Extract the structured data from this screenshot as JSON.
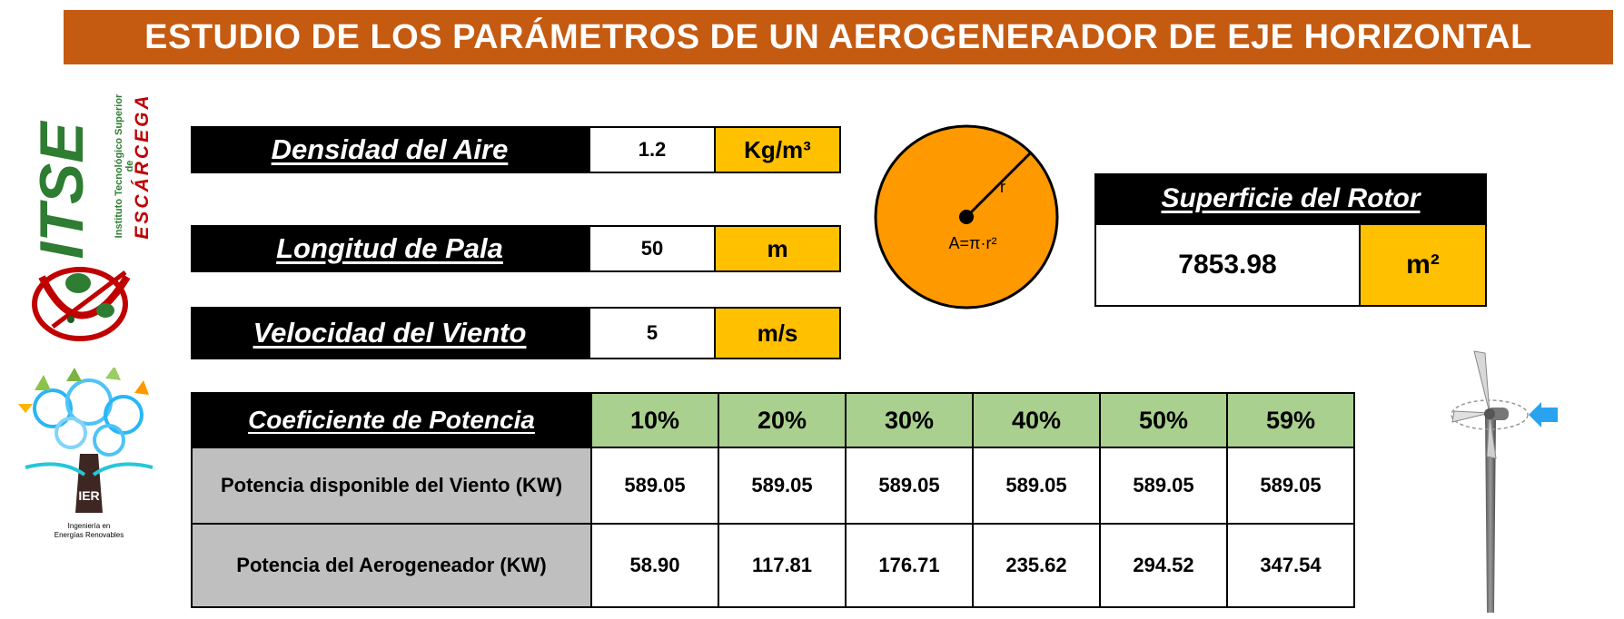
{
  "title": "ESTUDIO DE LOS PARÁMETROS DE UN AEROGENERADOR DE EJE HORIZONTAL",
  "logo_itse": {
    "acronym": "ITSE",
    "subtitle": "Instituto Tecnológico Superior de",
    "city": "ESCÁRCEGA"
  },
  "logo_ier": {
    "acronym": "IER",
    "subtitle_line1": "Ingeniería en",
    "subtitle_line2": "Energías Renovables"
  },
  "params": [
    {
      "label": "Densidad del Aire",
      "value": "1.2",
      "unit": "Kg/m³"
    },
    {
      "label": "Longitud de Pala",
      "value": "50",
      "unit": "m"
    },
    {
      "label": "Velocidad del Viento",
      "value": "5",
      "unit": "m/s"
    }
  ],
  "circle": {
    "radius_label": "r",
    "formula": "A=π·r²"
  },
  "rotor": {
    "label": "Superficie del Rotor",
    "value": "7853.98",
    "unit": "m²"
  },
  "table": {
    "header_label": "Coeficiente de Potencia",
    "coefficients": [
      "10%",
      "20%",
      "30%",
      "40%",
      "50%",
      "59%"
    ],
    "rows": [
      {
        "label": "Potencia disponible del Viento (KW)",
        "values": [
          "589.05",
          "589.05",
          "589.05",
          "589.05",
          "589.05",
          "589.05"
        ]
      },
      {
        "label": "Potencia del Aerogeneador (KW)",
        "values": [
          "58.90",
          "117.81",
          "176.71",
          "235.62",
          "294.52",
          "347.54"
        ]
      }
    ]
  },
  "colors": {
    "banner": "#C55A11",
    "unit": "#FFC000",
    "header_green": "#A9D08E",
    "row_gray": "#BFBFBF",
    "circle": "#FF9900"
  }
}
